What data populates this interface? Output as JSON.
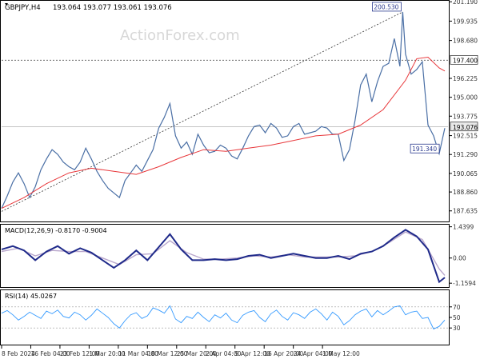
{
  "chart_data": {
    "type": "line",
    "instrument_label": "GBPJPY,H4",
    "ohlc_label": "193.064 193.077 193.061 193.076",
    "watermark": "ActionForex.com",
    "main_panel": {
      "ylim": [
        187.0,
        201.2
      ],
      "y_ticks": [
        {
          "value": 201.19,
          "label": "201.190"
        },
        {
          "value": 199.935,
          "label": "199.935"
        },
        {
          "value": 198.68,
          "label": "198.680"
        },
        {
          "value": 196.225,
          "label": "196.225"
        },
        {
          "value": 195.0,
          "label": "195.000"
        },
        {
          "value": 193.775,
          "label": "193.775"
        },
        {
          "value": 192.515,
          "label": "192.515"
        },
        {
          "value": 191.29,
          "label": "191.290"
        },
        {
          "value": 190.065,
          "label": "190.065"
        },
        {
          "value": 188.86,
          "label": "188.860"
        },
        {
          "value": 187.635,
          "label": "187.635"
        }
      ],
      "price_labels": [
        {
          "value": 197.4,
          "label": "197.400",
          "style": "outline"
        },
        {
          "value": 193.076,
          "label": "193.076",
          "style": "current"
        }
      ],
      "hlines": [
        197.4
      ],
      "current_price": 193.076,
      "annotations": [
        {
          "label": "200.530",
          "x": 71.5,
          "y": 200.53
        },
        {
          "label": "191.340",
          "x": 78.3,
          "y": 191.34
        }
      ],
      "trendline": {
        "from": [
          0,
          187.6
        ],
        "to": [
          71.5,
          200.53
        ]
      },
      "series": [
        {
          "type": "price",
          "x": [
            0,
            1,
            2,
            3,
            4,
            5,
            6,
            7,
            8,
            9,
            10,
            11,
            12,
            13,
            14,
            15,
            16,
            17,
            18,
            19,
            20,
            21,
            22,
            23,
            24,
            25,
            26,
            27,
            28,
            29,
            30,
            31,
            32,
            33,
            34,
            35,
            36,
            37,
            38,
            39,
            40,
            41,
            42,
            43,
            44,
            45,
            46,
            47,
            48,
            49,
            50,
            51,
            52,
            53,
            54,
            55,
            56,
            57,
            58,
            59,
            60,
            61,
            62,
            63,
            64,
            65,
            66,
            67,
            68,
            69,
            70,
            71,
            71.5,
            72,
            73,
            74,
            75,
            76,
            77,
            78,
            79
          ],
          "values": [
            187.8,
            188.6,
            189.5,
            190.1,
            189.4,
            188.5,
            189.2,
            190.3,
            191.0,
            191.6,
            191.3,
            190.8,
            190.5,
            190.3,
            190.8,
            191.7,
            191.0,
            190.2,
            189.6,
            189.1,
            188.8,
            188.5,
            189.6,
            190.1,
            190.6,
            190.2,
            190.9,
            191.6,
            193.0,
            193.7,
            194.6,
            192.5,
            191.7,
            192.1,
            191.3,
            192.6,
            191.9,
            191.4,
            191.5,
            191.9,
            191.7,
            191.2,
            191.0,
            191.7,
            192.5,
            193.1,
            193.2,
            192.7,
            193.3,
            193.0,
            192.4,
            192.5,
            193.1,
            193.3,
            192.6,
            192.7,
            192.8,
            193.1,
            193.0,
            192.6,
            192.6,
            190.9,
            191.6,
            193.5,
            195.8,
            196.5,
            194.7,
            196.0,
            197.0,
            197.2,
            198.8,
            197.0,
            200.53,
            197.8,
            196.5,
            196.8,
            197.3,
            193.2,
            192.5,
            191.34,
            193.0
          ]
        },
        {
          "type": "moving-average",
          "x": [
            0,
            4,
            8,
            12,
            16,
            20,
            24,
            28,
            32,
            36,
            40,
            44,
            48,
            52,
            56,
            60,
            64,
            68,
            72,
            74,
            76,
            78,
            79
          ],
          "values": [
            187.8,
            188.5,
            189.4,
            190.1,
            190.4,
            190.2,
            190.0,
            190.5,
            191.1,
            191.6,
            191.5,
            191.7,
            191.9,
            192.2,
            192.5,
            192.6,
            193.2,
            194.2,
            196.1,
            197.5,
            197.6,
            196.9,
            196.7
          ]
        }
      ]
    },
    "macd_panel": {
      "label": "MACD(12,26,9) -0.8170 -0.9004",
      "ylim": [
        -1.3,
        1.5
      ],
      "y_ticks": [
        {
          "value": 1.4399,
          "label": "1.4399"
        },
        {
          "value": 0.0,
          "label": "0.00"
        },
        {
          "value": -1.1594,
          "label": "-1.1594"
        }
      ],
      "series": [
        {
          "type": "macd",
          "x": [
            0,
            2,
            4,
            6,
            8,
            10,
            12,
            14,
            16,
            18,
            20,
            22,
            24,
            26,
            28,
            30,
            32,
            34,
            36,
            38,
            40,
            42,
            44,
            46,
            48,
            50,
            52,
            54,
            56,
            58,
            60,
            62,
            64,
            66,
            68,
            70,
            72,
            74,
            76,
            78,
            79
          ],
          "values": [
            0.4,
            0.55,
            0.35,
            -0.1,
            0.3,
            0.55,
            0.2,
            0.45,
            0.25,
            -0.1,
            -0.45,
            -0.1,
            0.35,
            -0.1,
            0.5,
            1.1,
            0.4,
            -0.1,
            -0.1,
            -0.05,
            -0.1,
            -0.05,
            0.1,
            0.15,
            0.0,
            0.1,
            0.2,
            0.1,
            0.0,
            0.0,
            0.1,
            -0.05,
            0.2,
            0.3,
            0.55,
            0.95,
            1.3,
            1.0,
            0.4,
            -1.1,
            -0.9
          ]
        },
        {
          "type": "signal",
          "x": [
            0,
            3,
            6,
            9,
            12,
            15,
            18,
            21,
            24,
            27,
            30,
            33,
            36,
            39,
            42,
            45,
            48,
            51,
            54,
            57,
            60,
            63,
            66,
            69,
            72,
            75,
            78,
            79
          ],
          "values": [
            0.3,
            0.45,
            0.1,
            0.35,
            0.3,
            0.3,
            0.0,
            -0.3,
            0.15,
            0.2,
            0.8,
            0.25,
            -0.05,
            -0.05,
            0.0,
            0.1,
            0.05,
            0.15,
            0.05,
            0.05,
            0.05,
            0.1,
            0.3,
            0.7,
            1.2,
            0.85,
            -0.5,
            -0.8
          ]
        }
      ]
    },
    "rsi_panel": {
      "label": "RSI(14) 45.0267",
      "ylim": [
        0,
        100
      ],
      "y_ticks": [
        {
          "value": 70,
          "label": "70"
        },
        {
          "value": 50,
          "label": "50"
        },
        {
          "value": 30,
          "label": "30"
        }
      ],
      "levels": [
        70,
        30
      ],
      "series": [
        {
          "type": "rsi",
          "x": [
            0,
            1,
            2,
            3,
            4,
            5,
            6,
            7,
            8,
            9,
            10,
            11,
            12,
            13,
            14,
            15,
            16,
            17,
            18,
            19,
            20,
            21,
            22,
            23,
            24,
            25,
            26,
            27,
            28,
            29,
            30,
            31,
            32,
            33,
            34,
            35,
            36,
            37,
            38,
            39,
            40,
            41,
            42,
            43,
            44,
            45,
            46,
            47,
            48,
            49,
            50,
            51,
            52,
            53,
            54,
            55,
            56,
            57,
            58,
            59,
            60,
            61,
            62,
            63,
            64,
            65,
            66,
            67,
            68,
            69,
            70,
            71,
            72,
            73,
            74,
            75,
            76,
            77,
            78,
            79
          ],
          "values": [
            58,
            63,
            55,
            45,
            52,
            60,
            54,
            48,
            62,
            57,
            64,
            52,
            49,
            60,
            55,
            45,
            54,
            66,
            58,
            50,
            38,
            30,
            44,
            55,
            59,
            48,
            53,
            68,
            64,
            58,
            72,
            47,
            40,
            52,
            48,
            60,
            50,
            42,
            55,
            49,
            58,
            45,
            40,
            54,
            60,
            63,
            50,
            42,
            57,
            64,
            52,
            45,
            59,
            55,
            48,
            60,
            66,
            57,
            45,
            60,
            52,
            36,
            44,
            55,
            62,
            66,
            51,
            63,
            55,
            62,
            70,
            72,
            55,
            60,
            62,
            48,
            50,
            28,
            33,
            45
          ]
        }
      ]
    },
    "x_ticks": [
      {
        "x": 0,
        "label": "8 Feb 2024"
      },
      {
        "x": 5.2,
        "label": "16 Feb 04:00"
      },
      {
        "x": 10.4,
        "label": "23 Feb 12:00"
      },
      {
        "x": 15.6,
        "label": "1 Mar 20:00"
      },
      {
        "x": 20.8,
        "label": "11 Mar 04:00"
      },
      {
        "x": 26.0,
        "label": "18 Mar 12:00"
      },
      {
        "x": 31.2,
        "label": "25 Mar 20:00"
      },
      {
        "x": 36.4,
        "label": "2 Apr 04:00"
      },
      {
        "x": 41.6,
        "label": "9 Apr 12:00"
      },
      {
        "x": 46.8,
        "label": "16 Apr 20:00"
      },
      {
        "x": 52.0,
        "label": "24 Apr 04:00"
      },
      {
        "x": 57.2,
        "label": "1 May 12:00"
      }
    ],
    "colors": {
      "price": "#4a6fa5",
      "moving_average": "#e8383b",
      "macd": "#1f2a8a",
      "signal": "#b9a7cc",
      "rsi": "#3399ff",
      "grid_text": "#333333",
      "current_price_bg": "#e9e9e9"
    }
  }
}
